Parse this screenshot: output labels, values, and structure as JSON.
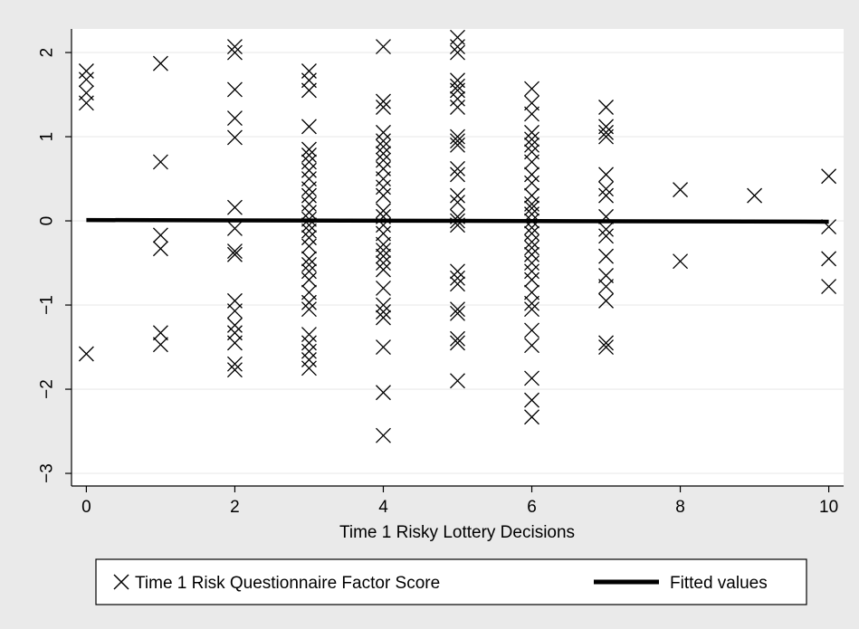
{
  "chart_data": {
    "type": "scatter",
    "title": "",
    "xlabel": "Time 1 Risky Lottery Decisions",
    "ylabel": "",
    "xlim": [
      -0.2,
      10.2
    ],
    "ylim": [
      -3.15,
      2.28
    ],
    "xticks": [
      0,
      2,
      4,
      6,
      8,
      10
    ],
    "yticks": [
      -3,
      -2,
      -1,
      0,
      1,
      2
    ],
    "xtick_labels": [
      "0",
      "2",
      "4",
      "6",
      "8",
      "10"
    ],
    "ytick_labels": [
      "−3",
      "−2",
      "−1",
      "0",
      "1",
      "2"
    ],
    "grid": "horizontal",
    "legend_position": "bottom",
    "series": [
      {
        "name": "Time 1 Risk Questionnaire Factor Score",
        "marker": "x",
        "color": "#000000",
        "points": [
          [
            0,
            1.78
          ],
          [
            0,
            1.68
          ],
          [
            0,
            1.52
          ],
          [
            0,
            1.4
          ],
          [
            0,
            -1.58
          ],
          [
            1,
            1.87
          ],
          [
            1,
            0.7
          ],
          [
            1,
            -0.17
          ],
          [
            1,
            -0.33
          ],
          [
            1,
            -1.33
          ],
          [
            1,
            -1.47
          ],
          [
            2,
            2.07
          ],
          [
            2,
            2.0
          ],
          [
            2,
            1.56
          ],
          [
            2,
            1.22
          ],
          [
            2,
            0.99
          ],
          [
            2,
            0.16
          ],
          [
            2,
            -0.09
          ],
          [
            2,
            -0.36
          ],
          [
            2,
            -0.4
          ],
          [
            2,
            -0.95
          ],
          [
            2,
            -1.07
          ],
          [
            2,
            -1.24
          ],
          [
            2,
            -1.33
          ],
          [
            2,
            -1.45
          ],
          [
            2,
            -1.7
          ],
          [
            2,
            -1.77
          ],
          [
            3,
            1.78
          ],
          [
            3,
            1.67
          ],
          [
            3,
            1.55
          ],
          [
            3,
            1.12
          ],
          [
            3,
            0.85
          ],
          [
            3,
            0.78
          ],
          [
            3,
            0.7
          ],
          [
            3,
            0.6
          ],
          [
            3,
            0.5
          ],
          [
            3,
            0.38
          ],
          [
            3,
            0.3
          ],
          [
            3,
            0.2
          ],
          [
            3,
            0.1
          ],
          [
            3,
            0.02
          ],
          [
            3,
            -0.05
          ],
          [
            3,
            -0.12
          ],
          [
            3,
            -0.2
          ],
          [
            3,
            -0.3
          ],
          [
            3,
            -0.45
          ],
          [
            3,
            -0.52
          ],
          [
            3,
            -0.6
          ],
          [
            3,
            -0.7
          ],
          [
            3,
            -0.85
          ],
          [
            3,
            -0.97
          ],
          [
            3,
            -1.05
          ],
          [
            3,
            -1.35
          ],
          [
            3,
            -1.45
          ],
          [
            3,
            -1.55
          ],
          [
            3,
            -1.65
          ],
          [
            3,
            -1.75
          ],
          [
            4,
            2.07
          ],
          [
            4,
            1.42
          ],
          [
            4,
            1.35
          ],
          [
            4,
            1.05
          ],
          [
            4,
            0.95
          ],
          [
            4,
            0.88
          ],
          [
            4,
            0.8
          ],
          [
            4,
            0.72
          ],
          [
            4,
            0.62
          ],
          [
            4,
            0.5
          ],
          [
            4,
            0.4
          ],
          [
            4,
            0.3
          ],
          [
            4,
            0.12
          ],
          [
            4,
            0.05
          ],
          [
            4,
            -0.05
          ],
          [
            4,
            -0.15
          ],
          [
            4,
            -0.28
          ],
          [
            4,
            -0.35
          ],
          [
            4,
            -0.42
          ],
          [
            4,
            -0.5
          ],
          [
            4,
            -0.58
          ],
          [
            4,
            -0.8
          ],
          [
            4,
            -1.0
          ],
          [
            4,
            -1.08
          ],
          [
            4,
            -1.15
          ],
          [
            4,
            -1.5
          ],
          [
            4,
            -2.04
          ],
          [
            4,
            -2.55
          ],
          [
            5,
            2.18
          ],
          [
            5,
            2.07
          ],
          [
            5,
            2.0
          ],
          [
            5,
            1.67
          ],
          [
            5,
            1.6
          ],
          [
            5,
            1.55
          ],
          [
            5,
            1.45
          ],
          [
            5,
            1.35
          ],
          [
            5,
            1.0
          ],
          [
            5,
            0.95
          ],
          [
            5,
            0.9
          ],
          [
            5,
            0.62
          ],
          [
            5,
            0.55
          ],
          [
            5,
            0.3
          ],
          [
            5,
            0.22
          ],
          [
            5,
            0.05
          ],
          [
            5,
            0.0
          ],
          [
            5,
            -0.05
          ],
          [
            5,
            -0.6
          ],
          [
            5,
            -0.68
          ],
          [
            5,
            -0.75
          ],
          [
            5,
            -1.05
          ],
          [
            5,
            -1.1
          ],
          [
            5,
            -1.4
          ],
          [
            5,
            -1.45
          ],
          [
            5,
            -1.9
          ],
          [
            6,
            1.57
          ],
          [
            6,
            1.4
          ],
          [
            6,
            1.27
          ],
          [
            6,
            1.05
          ],
          [
            6,
            0.97
          ],
          [
            6,
            0.9
          ],
          [
            6,
            0.82
          ],
          [
            6,
            0.7
          ],
          [
            6,
            0.55
          ],
          [
            6,
            0.45
          ],
          [
            6,
            0.3
          ],
          [
            6,
            0.2
          ],
          [
            6,
            0.15
          ],
          [
            6,
            0.08
          ],
          [
            6,
            0.0
          ],
          [
            6,
            -0.08
          ],
          [
            6,
            -0.15
          ],
          [
            6,
            -0.25
          ],
          [
            6,
            -0.32
          ],
          [
            6,
            -0.4
          ],
          [
            6,
            -0.5
          ],
          [
            6,
            -0.6
          ],
          [
            6,
            -0.7
          ],
          [
            6,
            -0.85
          ],
          [
            6,
            -0.98
          ],
          [
            6,
            -1.05
          ],
          [
            6,
            -1.3
          ],
          [
            6,
            -1.48
          ],
          [
            6,
            -1.87
          ],
          [
            6,
            -2.13
          ],
          [
            6,
            -2.33
          ],
          [
            7,
            1.35
          ],
          [
            7,
            1.12
          ],
          [
            7,
            1.05
          ],
          [
            7,
            1.0
          ],
          [
            7,
            0.55
          ],
          [
            7,
            0.38
          ],
          [
            7,
            0.3
          ],
          [
            7,
            0.05
          ],
          [
            7,
            -0.1
          ],
          [
            7,
            -0.18
          ],
          [
            7,
            -0.42
          ],
          [
            7,
            -0.65
          ],
          [
            7,
            -0.78
          ],
          [
            7,
            -0.95
          ],
          [
            7,
            -1.45
          ],
          [
            7,
            -1.5
          ],
          [
            8,
            0.37
          ],
          [
            8,
            -0.48
          ],
          [
            9,
            0.3
          ],
          [
            10,
            0.53
          ],
          [
            10,
            -0.07
          ],
          [
            10,
            -0.45
          ],
          [
            10,
            -0.78
          ]
        ]
      },
      {
        "name": "Fitted values",
        "line": true,
        "color": "#000000",
        "x": [
          0,
          10
        ],
        "y": [
          0.01,
          -0.01
        ]
      }
    ]
  },
  "legend": {
    "items": [
      {
        "label": "Time 1 Risk Questionnaire Factor Score",
        "symbol": "x"
      },
      {
        "label": "Fitted values",
        "symbol": "line"
      }
    ]
  },
  "colors": {
    "background": "#eaeaea",
    "plot_background": "#ffffff",
    "grid": "#eaeaea",
    "marker": "#000000"
  }
}
